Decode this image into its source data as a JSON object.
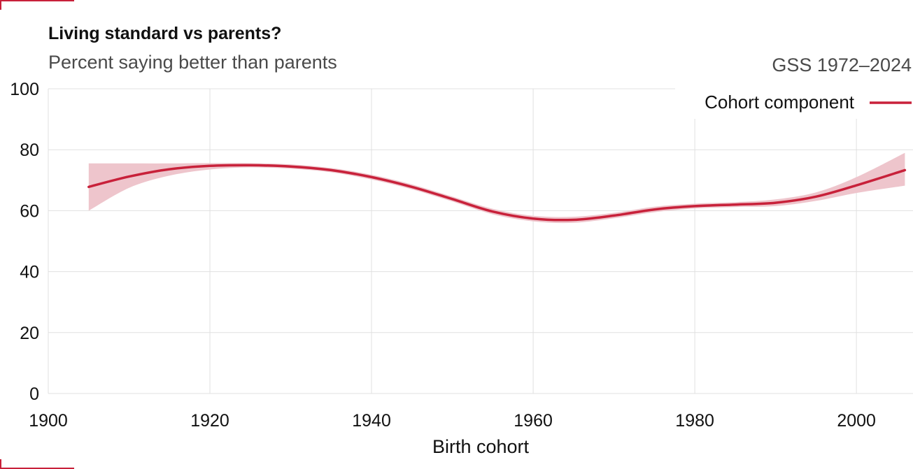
{
  "title": "Living standard vs parents?",
  "subtitle": "Percent saying better than parents",
  "source": "GSS 1972–2024",
  "colors": {
    "line": "#c8213a",
    "band": "#eec5cc",
    "grid": "#e0e0e0",
    "accent": "#c8213a"
  },
  "chart_data": {
    "type": "line",
    "title": "Living standard vs parents?",
    "subtitle": "Percent saying better than parents",
    "xlabel": "Birth cohort",
    "ylabel": "",
    "xlim": [
      1900,
      2007
    ],
    "ylim": [
      0,
      100
    ],
    "xticks": [
      1900,
      1920,
      1940,
      1960,
      1980,
      2000
    ],
    "yticks": [
      0,
      20,
      40,
      60,
      80,
      100
    ],
    "grid": true,
    "legend_position": "top-right",
    "series": [
      {
        "name": "Cohort component",
        "x": [
          1905,
          1910,
          1915,
          1920,
          1925,
          1930,
          1935,
          1940,
          1945,
          1950,
          1955,
          1960,
          1965,
          1970,
          1975,
          1980,
          1985,
          1990,
          1995,
          2000,
          2006
        ],
        "y": [
          67.8,
          71.2,
          73.6,
          74.7,
          74.9,
          74.5,
          73.3,
          71.0,
          67.8,
          63.8,
          59.7,
          57.4,
          57.0,
          58.4,
          60.4,
          61.5,
          62.0,
          62.6,
          64.6,
          68.3,
          73.3
        ],
        "lower": [
          60.0,
          67.5,
          71.5,
          73.5,
          74.2,
          73.8,
          72.6,
          70.2,
          67.0,
          63.0,
          58.8,
          56.5,
          56.0,
          57.5,
          59.5,
          60.7,
          61.2,
          61.5,
          63.2,
          65.8,
          68.2
        ],
        "upper": [
          75.5,
          75.5,
          75.5,
          75.6,
          75.6,
          75.2,
          74.0,
          71.8,
          68.6,
          64.6,
          60.6,
          58.3,
          58.0,
          59.3,
          61.3,
          62.3,
          62.8,
          63.7,
          66.0,
          71.0,
          79.0
        ]
      }
    ]
  }
}
